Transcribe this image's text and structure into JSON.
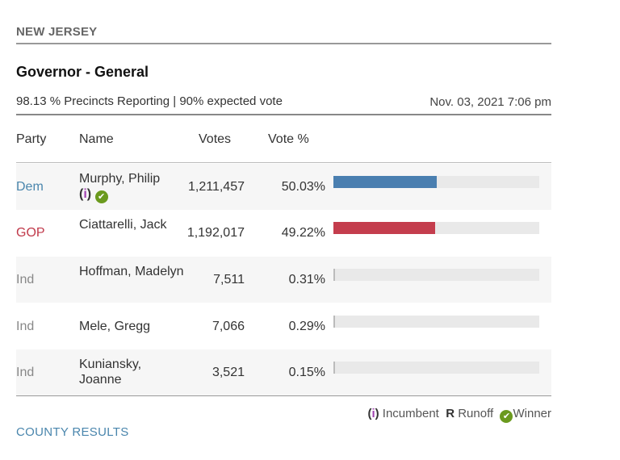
{
  "state": "NEW JERSEY",
  "race": "Governor - General",
  "reporting": "98.13 % Precincts Reporting | 90% expected vote",
  "timestamp": "Nov. 03, 2021 7:06 pm",
  "headers": {
    "party": "Party",
    "name": "Name",
    "votes": "Votes",
    "pct": "Vote %"
  },
  "colors": {
    "Dem": "#4a86ad",
    "GOP": "#c0394a",
    "Ind": "#888888",
    "dem_bar": "#4a7fb0",
    "gop_bar": "#c43d4d",
    "winner": "#6b9a1e",
    "incumbent": "#a040b0"
  },
  "rows": [
    {
      "party": "Dem",
      "name": "Murphy, Philip",
      "incumbent": true,
      "winner": true,
      "votes": "1,211,457",
      "pct": "50.03%",
      "share": 50.03
    },
    {
      "party": "GOP",
      "name": "Ciattarelli, Jack",
      "votes": "1,192,017",
      "pct": "49.22%",
      "share": 49.22
    },
    {
      "party": "Ind",
      "name": "Hoffman, Madelyn",
      "votes": "7,511",
      "pct": "0.31%",
      "share": 0.31
    },
    {
      "party": "Ind",
      "name": "Mele, Gregg",
      "votes": "7,066",
      "pct": "0.29%",
      "share": 0.29
    },
    {
      "party": "Ind",
      "name": "Kuniansky, Joanne",
      "votes": "3,521",
      "pct": "0.15%",
      "share": 0.15
    }
  ],
  "legend": {
    "incumbent_mark": "i",
    "incumbent": "Incumbent",
    "runoff_mark": "R",
    "runoff": "Runoff",
    "winner": "Winner"
  },
  "county_link": "COUNTY RESULTS"
}
